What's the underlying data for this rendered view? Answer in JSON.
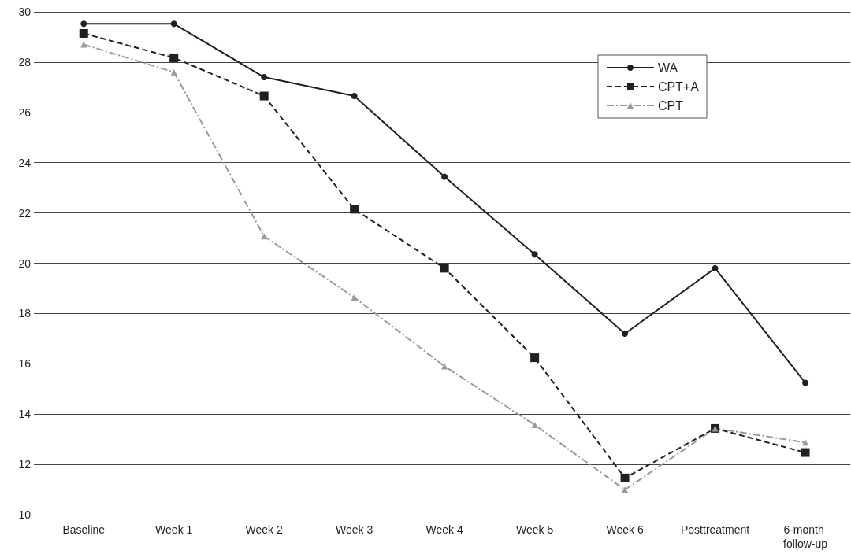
{
  "chart_data": {
    "type": "line",
    "categories": [
      "Baseline",
      "Week 1",
      "Week 2",
      "Week 3",
      "Week 4",
      "Week 5",
      "Week 6",
      "Posttreatment",
      "6-month follow-up"
    ],
    "series": [
      {
        "name": "WA",
        "color": "#231f20",
        "marker": "circle",
        "line_style": "solid",
        "values": [
          29.52,
          29.52,
          27.4,
          26.65,
          23.44,
          20.35,
          17.2,
          19.8,
          15.24
        ]
      },
      {
        "name": "CPT+A",
        "color": "#231f20",
        "marker": "square",
        "line_style": "dashed",
        "values": [
          29.14,
          28.17,
          26.65,
          22.15,
          19.8,
          16.24,
          11.46,
          13.43,
          12.47
        ]
      },
      {
        "name": "CPT",
        "color": "#9a9a9c",
        "marker": "triangle",
        "line_style": "dashdot",
        "values": [
          28.7,
          27.6,
          21.07,
          18.64,
          15.9,
          13.57,
          10.99,
          13.43,
          12.87
        ]
      }
    ],
    "ylim": [
      10,
      30
    ],
    "yticks": [
      10,
      12,
      14,
      16,
      18,
      20,
      22,
      24,
      26,
      28,
      30
    ],
    "grid": "y",
    "legend": "top right"
  }
}
